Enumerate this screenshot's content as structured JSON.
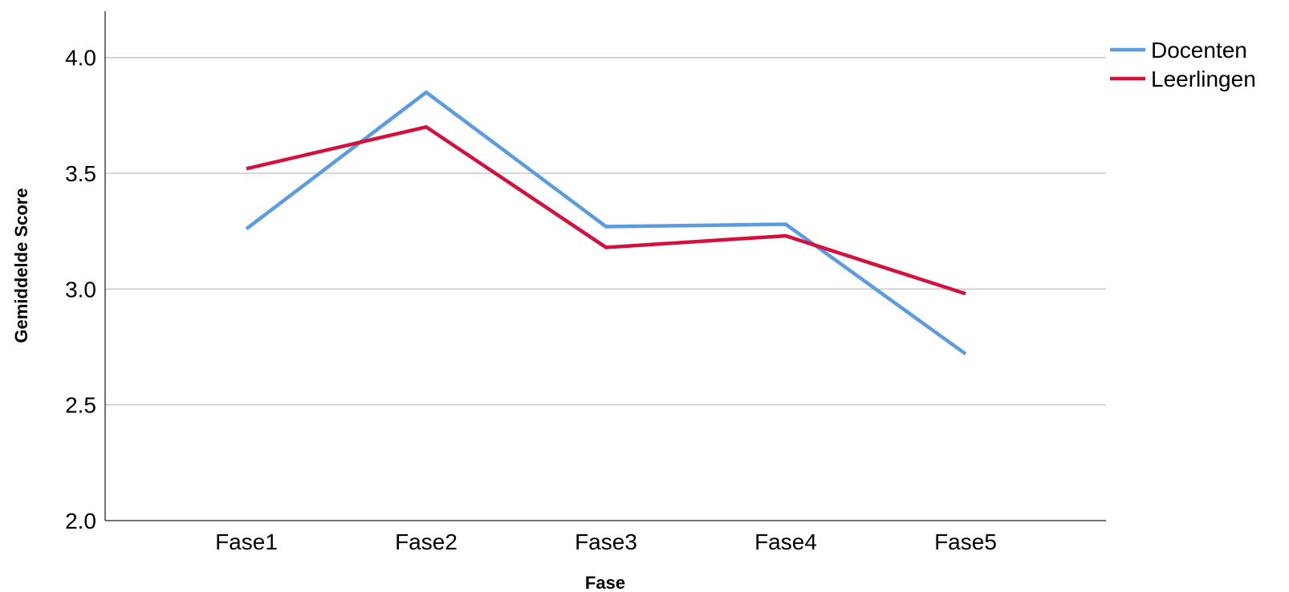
{
  "chart_data": {
    "type": "line",
    "title": "",
    "xlabel": "Fase",
    "ylabel": "Gemiddelde Score",
    "categories": [
      "Fase1",
      "Fase2",
      "Fase3",
      "Fase4",
      "Fase5"
    ],
    "ylim": [
      2.0,
      4.2
    ],
    "yticks": [
      "2.0",
      "2.5",
      "3.0",
      "3.5",
      "4.0"
    ],
    "grid": "horizontal",
    "legend_position": "top-right",
    "series": [
      {
        "name": "Docenten",
        "color": "#5b9be0",
        "values": [
          3.26,
          3.85,
          3.27,
          3.28,
          2.72
        ]
      },
      {
        "name": "Leerlingen",
        "color": "#d4103d",
        "values": [
          3.52,
          3.7,
          3.18,
          3.23,
          2.98
        ]
      }
    ]
  }
}
